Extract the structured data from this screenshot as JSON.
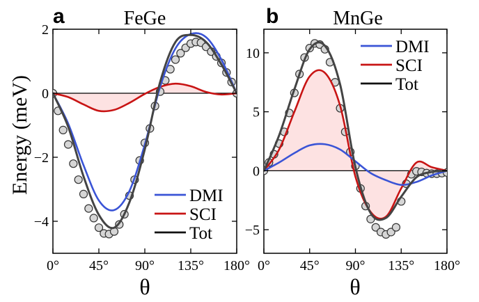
{
  "ylabel": "Energy (meV)",
  "colors": {
    "DMI": "#3a54d6",
    "SCI": "#c81414",
    "Tot": "#111111",
    "fill": "#fde2e2",
    "circle_fill": "#d6d6d6"
  },
  "chart_data": [
    {
      "type": "line",
      "panel_letter": "a",
      "title": "FeGe",
      "xlabel": "θ",
      "x_ticks": [
        "0°",
        "45°",
        "90°",
        "135°",
        "180°"
      ],
      "y_ticks": [
        "2",
        "0",
        "−2",
        "−4"
      ],
      "y_tick_values": [
        2,
        0,
        -2,
        -4
      ],
      "xlim": [
        0,
        180
      ],
      "ylim": [
        -5,
        2
      ],
      "grid": false,
      "legend": {
        "position": "bottom-right",
        "entries": [
          "DMI",
          "SCI",
          "Tot"
        ]
      },
      "series": [
        {
          "name": "DMI",
          "x": [
            0,
            15,
            30,
            45,
            60,
            75,
            90,
            105,
            120,
            135,
            150,
            165,
            180
          ],
          "y": [
            0,
            -0.95,
            -2.25,
            -3.35,
            -3.65,
            -3.05,
            -1.6,
            0.2,
            1.4,
            1.85,
            1.75,
            1.05,
            0
          ]
        },
        {
          "name": "SCI",
          "x": [
            0,
            15,
            30,
            45,
            60,
            75,
            90,
            105,
            120,
            135,
            150,
            165,
            180
          ],
          "y": [
            0,
            -0.12,
            -0.35,
            -0.55,
            -0.52,
            -0.3,
            -0.02,
            0.2,
            0.3,
            0.22,
            0.04,
            -0.04,
            0
          ]
        },
        {
          "name": "Tot",
          "x": [
            0,
            15,
            30,
            45,
            60,
            75,
            90,
            105,
            120,
            135,
            150,
            165,
            180
          ],
          "y": [
            0,
            -1.05,
            -2.6,
            -3.8,
            -4.2,
            -3.4,
            -1.75,
            0.35,
            1.6,
            1.82,
            1.6,
            0.9,
            0
          ]
        },
        {
          "name": "",
          "style": "markers",
          "x": [
            0,
            5,
            10,
            15,
            20,
            25,
            30,
            35,
            40,
            45,
            50,
            55,
            60,
            65,
            70,
            75,
            80,
            85,
            90,
            95,
            100,
            105,
            110,
            115,
            120,
            125,
            130,
            135,
            140,
            145,
            150,
            155,
            160,
            165,
            170,
            175,
            180
          ],
          "y": [
            0,
            -0.55,
            -1.15,
            -1.6,
            -2.2,
            -2.7,
            -3.15,
            -3.6,
            -3.9,
            -4.2,
            -4.38,
            -4.4,
            -4.32,
            -4.1,
            -3.78,
            -3.2,
            -2.7,
            -2.1,
            -1.55,
            -1.1,
            -0.4,
            0.05,
            0.4,
            0.75,
            1.05,
            1.25,
            1.42,
            1.55,
            1.6,
            1.58,
            1.45,
            1.3,
            1.15,
            0.95,
            0.65,
            0.35,
            0
          ]
        }
      ]
    },
    {
      "type": "line",
      "panel_letter": "b",
      "title": "MnGe",
      "xlabel": "θ",
      "x_ticks": [
        "0°",
        "45°",
        "90°",
        "135°",
        "180°"
      ],
      "y_ticks": [
        "10",
        "5",
        "0",
        "−5"
      ],
      "y_tick_values": [
        10,
        5,
        0,
        -5
      ],
      "xlim": [
        0,
        180
      ],
      "ylim": [
        -7,
        12
      ],
      "grid": false,
      "legend": {
        "position": "top-right",
        "entries": [
          "DMI",
          "SCI",
          "Tot"
        ]
      },
      "series": [
        {
          "name": "DMI",
          "x": [
            0,
            15,
            30,
            45,
            60,
            75,
            90,
            105,
            120,
            135,
            150,
            165,
            180
          ],
          "y": [
            0,
            0.7,
            1.5,
            2.15,
            2.25,
            1.8,
            0.8,
            -0.2,
            -0.8,
            -1.2,
            -0.95,
            -0.4,
            0
          ]
        },
        {
          "name": "SCI",
          "x": [
            0,
            15,
            30,
            45,
            60,
            75,
            90,
            105,
            120,
            135,
            150,
            165,
            180
          ],
          "y": [
            0,
            1.8,
            5.0,
            8.0,
            8.3,
            5.5,
            -0.5,
            -3.5,
            -3.9,
            -1.5,
            0.7,
            0.3,
            0
          ]
        },
        {
          "name": "Tot",
          "x": [
            0,
            15,
            30,
            45,
            60,
            75,
            90,
            105,
            120,
            135,
            150,
            165,
            180
          ],
          "y": [
            0,
            3.0,
            6.9,
            10.3,
            10.6,
            7.3,
            0.3,
            -3.6,
            -4.0,
            -2.2,
            -0.55,
            -0.1,
            0
          ]
        },
        {
          "name": "",
          "style": "markers",
          "x": [
            0,
            5,
            10,
            15,
            20,
            25,
            30,
            35,
            40,
            45,
            50,
            55,
            60,
            65,
            70,
            75,
            80,
            85,
            90,
            95,
            100,
            105,
            110,
            115,
            120,
            125,
            130,
            135,
            140,
            145,
            150,
            155,
            160,
            165,
            170,
            175,
            180
          ],
          "y": [
            0,
            0.7,
            1.4,
            2.3,
            3.3,
            4.9,
            6.6,
            8.2,
            9.6,
            10.4,
            10.8,
            10.7,
            10.3,
            9.2,
            7.5,
            5.3,
            3.3,
            1.6,
            0.4,
            -1.5,
            -3.0,
            -4.1,
            -4.8,
            -5.2,
            -5.4,
            -5.2,
            -4.8,
            -2.6,
            -1.1,
            -0.3,
            -0.05,
            -0.1,
            -0.2,
            -0.25,
            -0.25,
            -0.2,
            -0.15
          ]
        }
      ]
    }
  ]
}
